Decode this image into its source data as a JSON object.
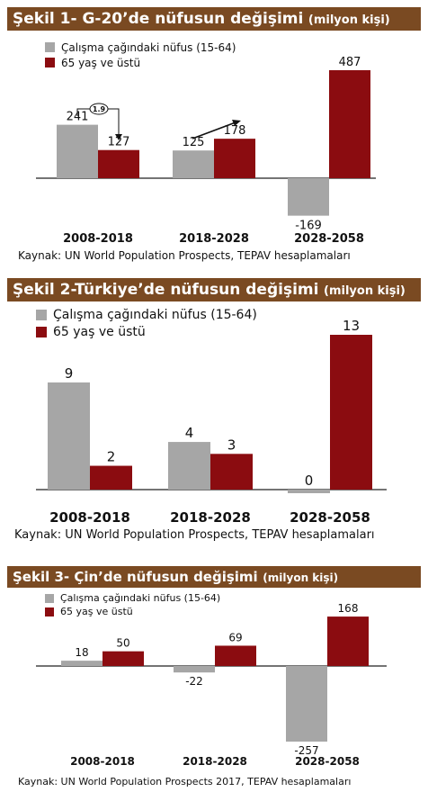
{
  "colors": {
    "header_bg": "#7a4a22",
    "gray": "#a6a6a6",
    "red": "#8b0c10"
  },
  "chart_data": [
    {
      "type": "bar",
      "title": "Şekil 1- G-20’de nüfusun değişimi",
      "unit": "(milyon kişi)",
      "categories": [
        "2008-2018",
        "2018-2028",
        "2028-2058"
      ],
      "series": [
        {
          "name": "Çalışma çağındaki nüfus (15-64)",
          "values": [
            241,
            125,
            -169
          ]
        },
        {
          "name": "65 yaş ve üstü",
          "values": [
            127,
            178,
            487
          ]
        }
      ],
      "annotation": "1.9",
      "source": "Kaynak: UN World Population Prospects, TEPAV hesaplamaları"
    },
    {
      "type": "bar",
      "title": "Şekil 2-Türkiye’de nüfusun değişimi",
      "unit": "(milyon kişi)",
      "categories": [
        "2008-2018",
        "2018-2028",
        "2028-2058"
      ],
      "series": [
        {
          "name": "Çalışma çağındaki nüfus (15-64)",
          "values": [
            9,
            4,
            0
          ]
        },
        {
          "name": "65 yaş ve üstü",
          "values": [
            2,
            3,
            13
          ]
        }
      ],
      "source": "Kaynak: UN World Population Prospects, TEPAV hesaplamaları"
    },
    {
      "type": "bar",
      "title": "Şekil 3- Çin’de nüfusun değişimi",
      "unit": "(milyon kişi)",
      "categories": [
        "2008-2018",
        "2018-2028",
        "2028-2058"
      ],
      "series": [
        {
          "name": "Çalışma çağındaki nüfus (15-64)",
          "values": [
            18,
            -22,
            -257
          ]
        },
        {
          "name": "65 yaş ve üstü",
          "values": [
            50,
            69,
            168
          ]
        }
      ],
      "source": "Kaynak: UN World Population Prospects 2017, TEPAV hesaplamaları"
    }
  ]
}
